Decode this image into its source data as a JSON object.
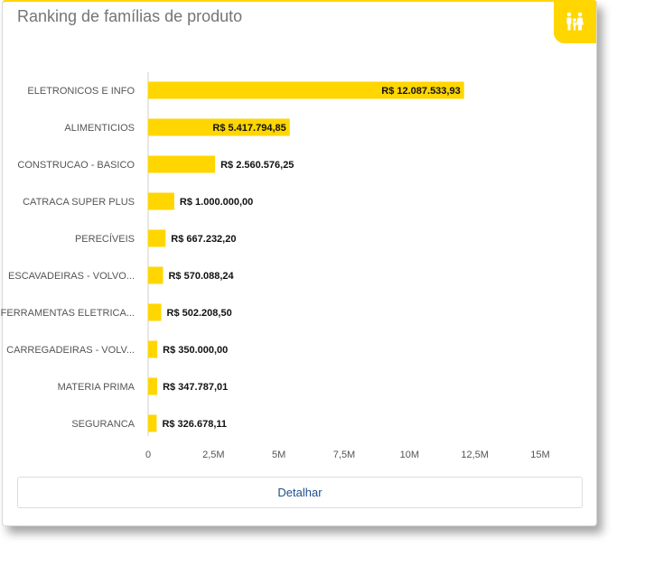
{
  "card": {
    "title": "Ranking de famílias de produto",
    "icon": "family-icon",
    "accent_color": "#ffd600"
  },
  "chart_data": {
    "type": "bar",
    "orientation": "horizontal",
    "categories": [
      "ELETRONICOS E INFO",
      "ALIMENTICIOS",
      "CONSTRUCAO - BASICO",
      "CATRACA SUPER PLUS",
      "PERECÍVEIS",
      "ESCAVADEIRAS - VOLVO...",
      "FERRAMENTAS ELETRICA...",
      "CARREGADEIRAS - VOLV...",
      "MATERIA PRIMA",
      "SEGURANCA"
    ],
    "values": [
      12087533.93,
      5417794.85,
      2560576.25,
      1000000.0,
      667232.2,
      570088.24,
      502208.5,
      350000.0,
      347787.01,
      326678.11
    ],
    "value_labels": [
      "R$ 12.087.533,93",
      "R$ 5.417.794,85",
      "R$ 2.560.576,25",
      "R$ 1.000.000,00",
      "R$ 667.232,20",
      "R$ 570.088,24",
      "R$ 502.208,50",
      "R$ 350.000,00",
      "R$ 347.787,01",
      "R$ 326.678,11"
    ],
    "xlim": [
      0,
      15000000
    ],
    "x_ticks": [
      0,
      2500000,
      5000000,
      7500000,
      10000000,
      12500000,
      15000000
    ],
    "x_tick_labels": [
      "0",
      "2,5M",
      "5M",
      "7,5M",
      "10M",
      "12,5M",
      "15M"
    ],
    "bar_color": "#ffd600",
    "grid": false
  },
  "footer": {
    "detail_label": "Detalhar",
    "link_color": "#1f4f8a"
  }
}
